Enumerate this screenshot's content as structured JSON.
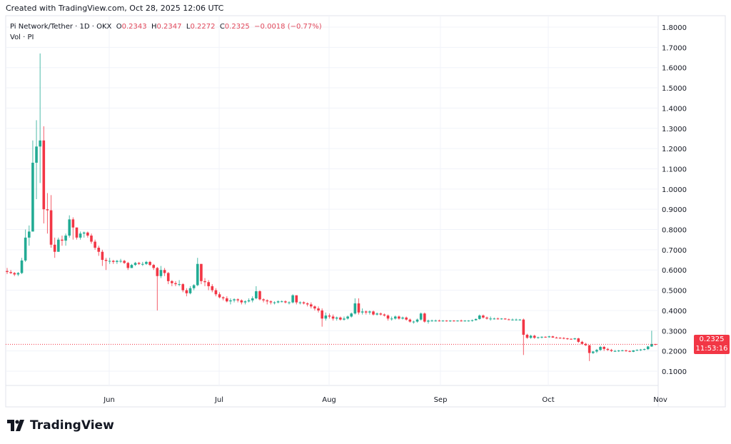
{
  "header": {
    "created": "Created with TradingView.com, Oct 28, 2025 12:06 UTC"
  },
  "legend": {
    "symbol": "Pi Network/Tether · 1D · OKX",
    "o_label": "O",
    "o": "0.2343",
    "h_label": "H",
    "h": "0.2347",
    "l_label": "L",
    "l": "0.2272",
    "c_label": "C",
    "c": "0.2325",
    "change": "−0.0018 (−0.77%)",
    "volume": "Vol · PI"
  },
  "price_tag": {
    "price": "0.2325",
    "countdown": "11:53:16"
  },
  "brand": {
    "name": "TradingView"
  },
  "colors": {
    "up": "#22ab94",
    "down": "#f23645",
    "grid": "#f0f3fa",
    "last_price": "#f23645"
  },
  "chart_data": {
    "type": "candlestick",
    "title": "Pi Network/Tether · 1D · OKX",
    "ylim": [
      0.05,
      1.85
    ],
    "y_ticks": [
      "0.1000",
      "0.2000",
      "0.3000",
      "0.4000",
      "0.5000",
      "0.6000",
      "0.7000",
      "0.8000",
      "0.9000",
      "1.0000",
      "1.1000",
      "1.2000",
      "1.3000",
      "1.4000",
      "1.5000",
      "1.6000",
      "1.7000",
      "1.8000"
    ],
    "x_ticks": [
      "Jun",
      "Jul",
      "Aug",
      "Sep",
      "Oct",
      "Nov"
    ],
    "grid": true,
    "last_price": 0.2325,
    "candles_ohlc": [
      [
        0.595,
        0.61,
        0.58,
        0.59
      ],
      [
        0.59,
        0.6,
        0.58,
        0.585
      ],
      [
        0.585,
        0.59,
        0.57,
        0.578
      ],
      [
        0.578,
        0.59,
        0.57,
        0.585
      ],
      [
        0.585,
        0.66,
        0.58,
        0.647
      ],
      [
        0.647,
        0.8,
        0.64,
        0.76
      ],
      [
        0.76,
        0.82,
        0.72,
        0.79
      ],
      [
        0.79,
        1.24,
        0.79,
        1.13
      ],
      [
        1.13,
        1.34,
        0.95,
        1.21
      ],
      [
        1.21,
        1.67,
        1.03,
        1.24
      ],
      [
        1.24,
        1.31,
        0.83,
        0.9
      ],
      [
        0.9,
        0.98,
        0.78,
        0.895
      ],
      [
        0.895,
        0.97,
        0.71,
        0.725
      ],
      [
        0.725,
        0.76,
        0.66,
        0.69
      ],
      [
        0.69,
        0.76,
        0.69,
        0.75
      ],
      [
        0.75,
        0.77,
        0.72,
        0.745
      ],
      [
        0.745,
        0.78,
        0.72,
        0.77
      ],
      [
        0.77,
        0.87,
        0.76,
        0.85
      ],
      [
        0.85,
        0.86,
        0.75,
        0.81
      ],
      [
        0.81,
        0.81,
        0.75,
        0.76
      ],
      [
        0.76,
        0.79,
        0.75,
        0.78
      ],
      [
        0.78,
        0.79,
        0.76,
        0.785
      ],
      [
        0.785,
        0.79,
        0.76,
        0.77
      ],
      [
        0.77,
        0.78,
        0.73,
        0.74
      ],
      [
        0.74,
        0.75,
        0.7,
        0.71
      ],
      [
        0.71,
        0.72,
        0.67,
        0.69
      ],
      [
        0.69,
        0.7,
        0.62,
        0.65
      ],
      [
        0.65,
        0.66,
        0.6,
        0.645
      ],
      [
        0.645,
        0.66,
        0.63,
        0.645
      ],
      [
        0.645,
        0.65,
        0.63,
        0.64
      ],
      [
        0.64,
        0.65,
        0.63,
        0.645
      ],
      [
        0.645,
        0.655,
        0.635,
        0.645
      ],
      [
        0.645,
        0.65,
        0.63,
        0.635
      ],
      [
        0.635,
        0.64,
        0.6,
        0.61
      ],
      [
        0.61,
        0.63,
        0.61,
        0.625
      ],
      [
        0.625,
        0.64,
        0.62,
        0.635
      ],
      [
        0.635,
        0.64,
        0.625,
        0.63
      ],
      [
        0.63,
        0.64,
        0.62,
        0.63
      ],
      [
        0.63,
        0.645,
        0.625,
        0.64
      ],
      [
        0.64,
        0.645,
        0.62,
        0.625
      ],
      [
        0.625,
        0.63,
        0.6,
        0.61
      ],
      [
        0.61,
        0.615,
        0.4,
        0.57
      ],
      [
        0.57,
        0.62,
        0.56,
        0.6
      ],
      [
        0.6,
        0.61,
        0.57,
        0.585
      ],
      [
        0.585,
        0.59,
        0.53,
        0.545
      ],
      [
        0.545,
        0.55,
        0.52,
        0.535
      ],
      [
        0.535,
        0.545,
        0.52,
        0.53
      ],
      [
        0.53,
        0.55,
        0.52,
        0.53
      ],
      [
        0.53,
        0.535,
        0.49,
        0.5
      ],
      [
        0.5,
        0.51,
        0.47,
        0.485
      ],
      [
        0.485,
        0.52,
        0.48,
        0.51
      ],
      [
        0.51,
        0.53,
        0.5,
        0.525
      ],
      [
        0.525,
        0.66,
        0.52,
        0.63
      ],
      [
        0.63,
        0.63,
        0.53,
        0.545
      ],
      [
        0.545,
        0.56,
        0.52,
        0.54
      ],
      [
        0.54,
        0.55,
        0.5,
        0.52
      ],
      [
        0.52,
        0.53,
        0.49,
        0.5
      ],
      [
        0.5,
        0.51,
        0.47,
        0.48
      ],
      [
        0.48,
        0.49,
        0.46,
        0.465
      ],
      [
        0.465,
        0.47,
        0.45,
        0.46
      ],
      [
        0.46,
        0.47,
        0.44,
        0.445
      ],
      [
        0.445,
        0.46,
        0.43,
        0.45
      ],
      [
        0.45,
        0.46,
        0.44,
        0.455
      ],
      [
        0.455,
        0.46,
        0.44,
        0.45
      ],
      [
        0.45,
        0.455,
        0.43,
        0.44
      ],
      [
        0.44,
        0.45,
        0.43,
        0.445
      ],
      [
        0.445,
        0.46,
        0.44,
        0.45
      ],
      [
        0.45,
        0.47,
        0.44,
        0.46
      ],
      [
        0.46,
        0.52,
        0.455,
        0.495
      ],
      [
        0.495,
        0.5,
        0.45,
        0.455
      ],
      [
        0.455,
        0.46,
        0.44,
        0.45
      ],
      [
        0.45,
        0.455,
        0.43,
        0.445
      ],
      [
        0.445,
        0.45,
        0.43,
        0.44
      ],
      [
        0.44,
        0.445,
        0.43,
        0.44
      ],
      [
        0.44,
        0.45,
        0.435,
        0.445
      ],
      [
        0.445,
        0.45,
        0.44,
        0.445
      ],
      [
        0.445,
        0.45,
        0.435,
        0.44
      ],
      [
        0.44,
        0.445,
        0.43,
        0.44
      ],
      [
        0.44,
        0.48,
        0.435,
        0.475
      ],
      [
        0.475,
        0.475,
        0.43,
        0.44
      ],
      [
        0.44,
        0.445,
        0.43,
        0.44
      ],
      [
        0.44,
        0.445,
        0.43,
        0.435
      ],
      [
        0.435,
        0.44,
        0.42,
        0.43
      ],
      [
        0.43,
        0.44,
        0.41,
        0.42
      ],
      [
        0.42,
        0.425,
        0.4,
        0.41
      ],
      [
        0.41,
        0.42,
        0.39,
        0.4
      ],
      [
        0.4,
        0.41,
        0.32,
        0.36
      ],
      [
        0.36,
        0.39,
        0.35,
        0.375
      ],
      [
        0.375,
        0.385,
        0.36,
        0.37
      ],
      [
        0.37,
        0.38,
        0.35,
        0.36
      ],
      [
        0.36,
        0.37,
        0.35,
        0.365
      ],
      [
        0.365,
        0.37,
        0.35,
        0.355
      ],
      [
        0.355,
        0.37,
        0.35,
        0.36
      ],
      [
        0.36,
        0.375,
        0.355,
        0.37
      ],
      [
        0.37,
        0.39,
        0.365,
        0.385
      ],
      [
        0.385,
        0.46,
        0.38,
        0.435
      ],
      [
        0.435,
        0.46,
        0.38,
        0.39
      ],
      [
        0.39,
        0.41,
        0.38,
        0.395
      ],
      [
        0.395,
        0.4,
        0.38,
        0.39
      ],
      [
        0.39,
        0.4,
        0.38,
        0.395
      ],
      [
        0.395,
        0.4,
        0.375,
        0.38
      ],
      [
        0.38,
        0.39,
        0.375,
        0.385
      ],
      [
        0.385,
        0.39,
        0.375,
        0.38
      ],
      [
        0.38,
        0.385,
        0.37,
        0.375
      ],
      [
        0.375,
        0.38,
        0.35,
        0.36
      ],
      [
        0.36,
        0.37,
        0.35,
        0.36
      ],
      [
        0.36,
        0.375,
        0.355,
        0.37
      ],
      [
        0.37,
        0.375,
        0.355,
        0.36
      ],
      [
        0.36,
        0.37,
        0.355,
        0.365
      ],
      [
        0.365,
        0.37,
        0.35,
        0.355
      ],
      [
        0.355,
        0.36,
        0.34,
        0.345
      ],
      [
        0.345,
        0.35,
        0.335,
        0.345
      ],
      [
        0.345,
        0.36,
        0.34,
        0.355
      ],
      [
        0.355,
        0.39,
        0.35,
        0.385
      ],
      [
        0.385,
        0.39,
        0.34,
        0.345
      ],
      [
        0.345,
        0.355,
        0.335,
        0.35
      ],
      [
        0.35,
        0.355,
        0.345,
        0.35
      ],
      [
        0.35,
        0.355,
        0.345,
        0.35
      ],
      [
        0.35,
        0.355,
        0.345,
        0.348
      ],
      [
        0.348,
        0.352,
        0.345,
        0.35
      ],
      [
        0.35,
        0.352,
        0.345,
        0.348
      ],
      [
        0.348,
        0.352,
        0.344,
        0.35
      ],
      [
        0.35,
        0.352,
        0.345,
        0.348
      ],
      [
        0.348,
        0.352,
        0.345,
        0.35
      ],
      [
        0.35,
        0.355,
        0.345,
        0.348
      ],
      [
        0.348,
        0.352,
        0.345,
        0.35
      ],
      [
        0.35,
        0.352,
        0.345,
        0.35
      ],
      [
        0.35,
        0.355,
        0.345,
        0.352
      ],
      [
        0.352,
        0.36,
        0.35,
        0.358
      ],
      [
        0.358,
        0.38,
        0.355,
        0.375
      ],
      [
        0.375,
        0.38,
        0.36,
        0.365
      ],
      [
        0.365,
        0.37,
        0.355,
        0.36
      ],
      [
        0.36,
        0.37,
        0.35,
        0.36
      ],
      [
        0.36,
        0.365,
        0.355,
        0.36
      ],
      [
        0.36,
        0.365,
        0.355,
        0.358
      ],
      [
        0.358,
        0.362,
        0.355,
        0.36
      ],
      [
        0.36,
        0.362,
        0.355,
        0.356
      ],
      [
        0.356,
        0.36,
        0.352,
        0.355
      ],
      [
        0.355,
        0.36,
        0.35,
        0.355
      ],
      [
        0.355,
        0.36,
        0.35,
        0.355
      ],
      [
        0.355,
        0.358,
        0.35,
        0.355
      ],
      [
        0.355,
        0.36,
        0.18,
        0.28
      ],
      [
        0.28,
        0.285,
        0.26,
        0.265
      ],
      [
        0.265,
        0.28,
        0.26,
        0.275
      ],
      [
        0.275,
        0.28,
        0.26,
        0.265
      ],
      [
        0.265,
        0.27,
        0.26,
        0.268
      ],
      [
        0.268,
        0.272,
        0.262,
        0.27
      ],
      [
        0.27,
        0.272,
        0.265,
        0.268
      ],
      [
        0.268,
        0.275,
        0.265,
        0.272
      ],
      [
        0.272,
        0.275,
        0.265,
        0.266
      ],
      [
        0.266,
        0.27,
        0.262,
        0.265
      ],
      [
        0.265,
        0.268,
        0.26,
        0.264
      ],
      [
        0.264,
        0.268,
        0.258,
        0.262
      ],
      [
        0.262,
        0.265,
        0.255,
        0.26
      ],
      [
        0.26,
        0.262,
        0.255,
        0.258
      ],
      [
        0.258,
        0.265,
        0.255,
        0.262
      ],
      [
        0.262,
        0.265,
        0.24,
        0.245
      ],
      [
        0.245,
        0.25,
        0.23,
        0.235
      ],
      [
        0.235,
        0.24,
        0.225,
        0.228
      ],
      [
        0.228,
        0.23,
        0.15,
        0.19
      ],
      [
        0.19,
        0.2,
        0.185,
        0.197
      ],
      [
        0.197,
        0.21,
        0.19,
        0.205
      ],
      [
        0.205,
        0.225,
        0.2,
        0.22
      ],
      [
        0.22,
        0.225,
        0.2,
        0.21
      ],
      [
        0.21,
        0.215,
        0.2,
        0.205
      ],
      [
        0.205,
        0.21,
        0.195,
        0.2
      ],
      [
        0.2,
        0.205,
        0.195,
        0.2
      ],
      [
        0.2,
        0.205,
        0.195,
        0.202
      ],
      [
        0.202,
        0.206,
        0.198,
        0.203
      ],
      [
        0.203,
        0.206,
        0.196,
        0.2
      ],
      [
        0.2,
        0.203,
        0.194,
        0.196
      ],
      [
        0.196,
        0.204,
        0.194,
        0.203
      ],
      [
        0.203,
        0.208,
        0.2,
        0.205
      ],
      [
        0.205,
        0.21,
        0.2,
        0.207
      ],
      [
        0.207,
        0.212,
        0.203,
        0.209
      ],
      [
        0.209,
        0.225,
        0.205,
        0.222
      ],
      [
        0.222,
        0.3,
        0.22,
        0.2343
      ],
      [
        0.2343,
        0.2347,
        0.2272,
        0.2325
      ]
    ]
  }
}
